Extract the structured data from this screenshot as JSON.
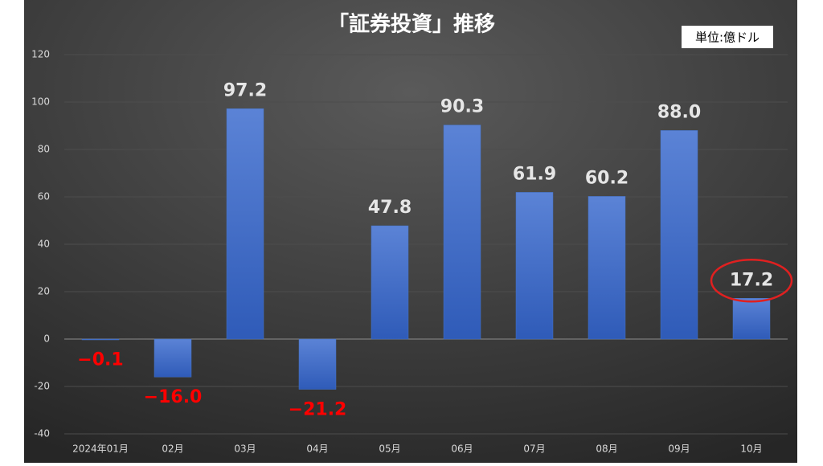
{
  "chart_data": {
    "type": "bar",
    "title": "「証券投資」推移",
    "unit_label": "単位:億ドル",
    "categories": [
      "2024年01月",
      "02月",
      "03月",
      "04月",
      "05月",
      "06月",
      "07月",
      "08月",
      "09月",
      "10月"
    ],
    "values": [
      -0.1,
      -16.0,
      97.2,
      -21.2,
      47.8,
      90.3,
      61.9,
      60.2,
      88.0,
      17.2
    ],
    "value_labels": [
      "−0.1",
      "−16.0",
      "97.2",
      "−21.2",
      "47.8",
      "90.3",
      "61.9",
      "60.2",
      "88.0",
      "17.2"
    ],
    "color": "#4472c4",
    "negative_label_color": "#ff0000",
    "positive_label_color": "#e6e6e6",
    "ylim": [
      -40,
      120
    ],
    "yticks": [
      -40,
      -20,
      0,
      20,
      40,
      60,
      80,
      100,
      120
    ],
    "grid": true
  }
}
